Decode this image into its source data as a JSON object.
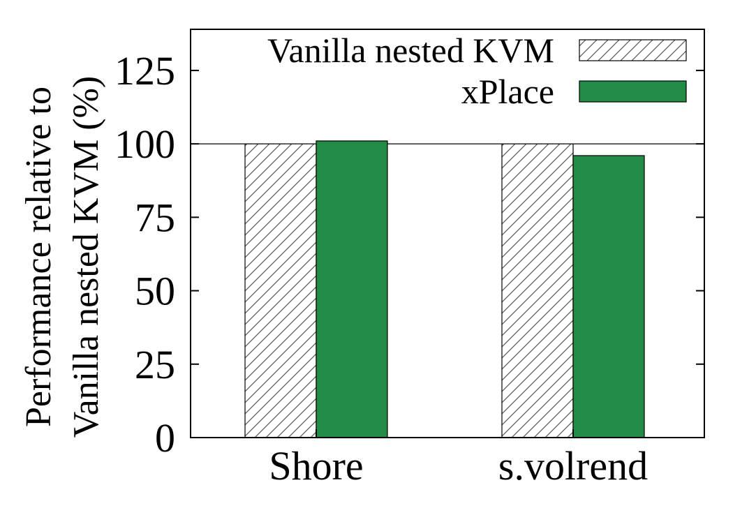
{
  "chart_data": {
    "type": "bar",
    "categories": [
      "Shore",
      "s.volrend"
    ],
    "series": [
      {
        "name": "Vanilla nested KVM",
        "values": [
          100,
          100
        ],
        "fill": "hatch"
      },
      {
        "name": "xPlace",
        "values": [
          101,
          96
        ],
        "fill": "#228b45"
      }
    ],
    "ylabel_lines": [
      "Performance relative to",
      "Vanilla nested KVM (%)"
    ],
    "xlabel": "",
    "title": "",
    "ylim": [
      0,
      139
    ],
    "yticks": [
      0,
      25,
      50,
      75,
      100,
      125
    ],
    "reference_line": 100,
    "legend_position": "top-right",
    "grid": false
  }
}
